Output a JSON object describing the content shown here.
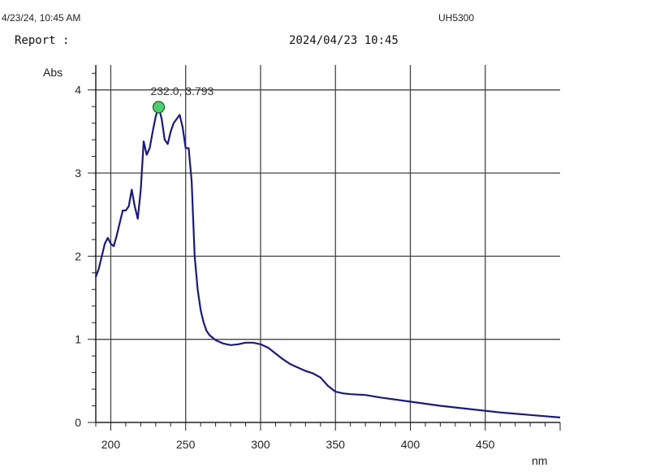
{
  "header": {
    "timestamp": "4/23/24, 10:45 AM",
    "instrument": "UH5300",
    "report_label": "Report :",
    "report_datetime": "2024/04/23 10:45"
  },
  "chart_data": {
    "type": "line",
    "xlabel": "nm",
    "ylabel": "Abs",
    "xlim": [
      190,
      500
    ],
    "ylim": [
      0,
      4.3
    ],
    "x_ticks": [
      200,
      250,
      300,
      350,
      400,
      450
    ],
    "y_ticks": [
      0,
      1,
      2,
      3,
      4
    ],
    "grid": true,
    "series": [
      {
        "color": "#1a1a7a",
        "x": [
          190,
          192,
          194,
          196,
          198,
          200,
          202,
          204,
          206,
          208,
          210,
          212,
          214,
          216,
          218,
          220,
          222,
          224,
          226,
          228,
          230,
          232,
          234,
          236,
          238,
          240,
          242,
          244,
          246,
          248,
          250,
          252,
          254,
          256,
          258,
          260,
          262,
          264,
          266,
          268,
          270,
          275,
          280,
          285,
          290,
          295,
          300,
          305,
          310,
          315,
          320,
          325,
          330,
          335,
          340,
          345,
          350,
          355,
          360,
          370,
          380,
          400,
          420,
          440,
          460,
          480,
          500
        ],
        "y": [
          1.75,
          1.85,
          2.0,
          2.15,
          2.22,
          2.15,
          2.12,
          2.25,
          2.4,
          2.55,
          2.55,
          2.6,
          2.8,
          2.6,
          2.45,
          2.8,
          3.38,
          3.22,
          3.3,
          3.5,
          3.68,
          3.793,
          3.65,
          3.4,
          3.35,
          3.5,
          3.6,
          3.65,
          3.7,
          3.55,
          3.3,
          3.3,
          2.9,
          2.0,
          1.6,
          1.35,
          1.2,
          1.1,
          1.05,
          1.02,
          0.99,
          0.95,
          0.93,
          0.94,
          0.96,
          0.96,
          0.94,
          0.9,
          0.83,
          0.76,
          0.7,
          0.66,
          0.62,
          0.59,
          0.54,
          0.44,
          0.37,
          0.35,
          0.34,
          0.33,
          0.3,
          0.25,
          0.2,
          0.16,
          0.12,
          0.09,
          0.06
        ]
      }
    ],
    "annotation": {
      "x": 232.0,
      "y": 3.793,
      "text": "232.0, 3.793",
      "marker_color": "#4ecf6e"
    }
  }
}
